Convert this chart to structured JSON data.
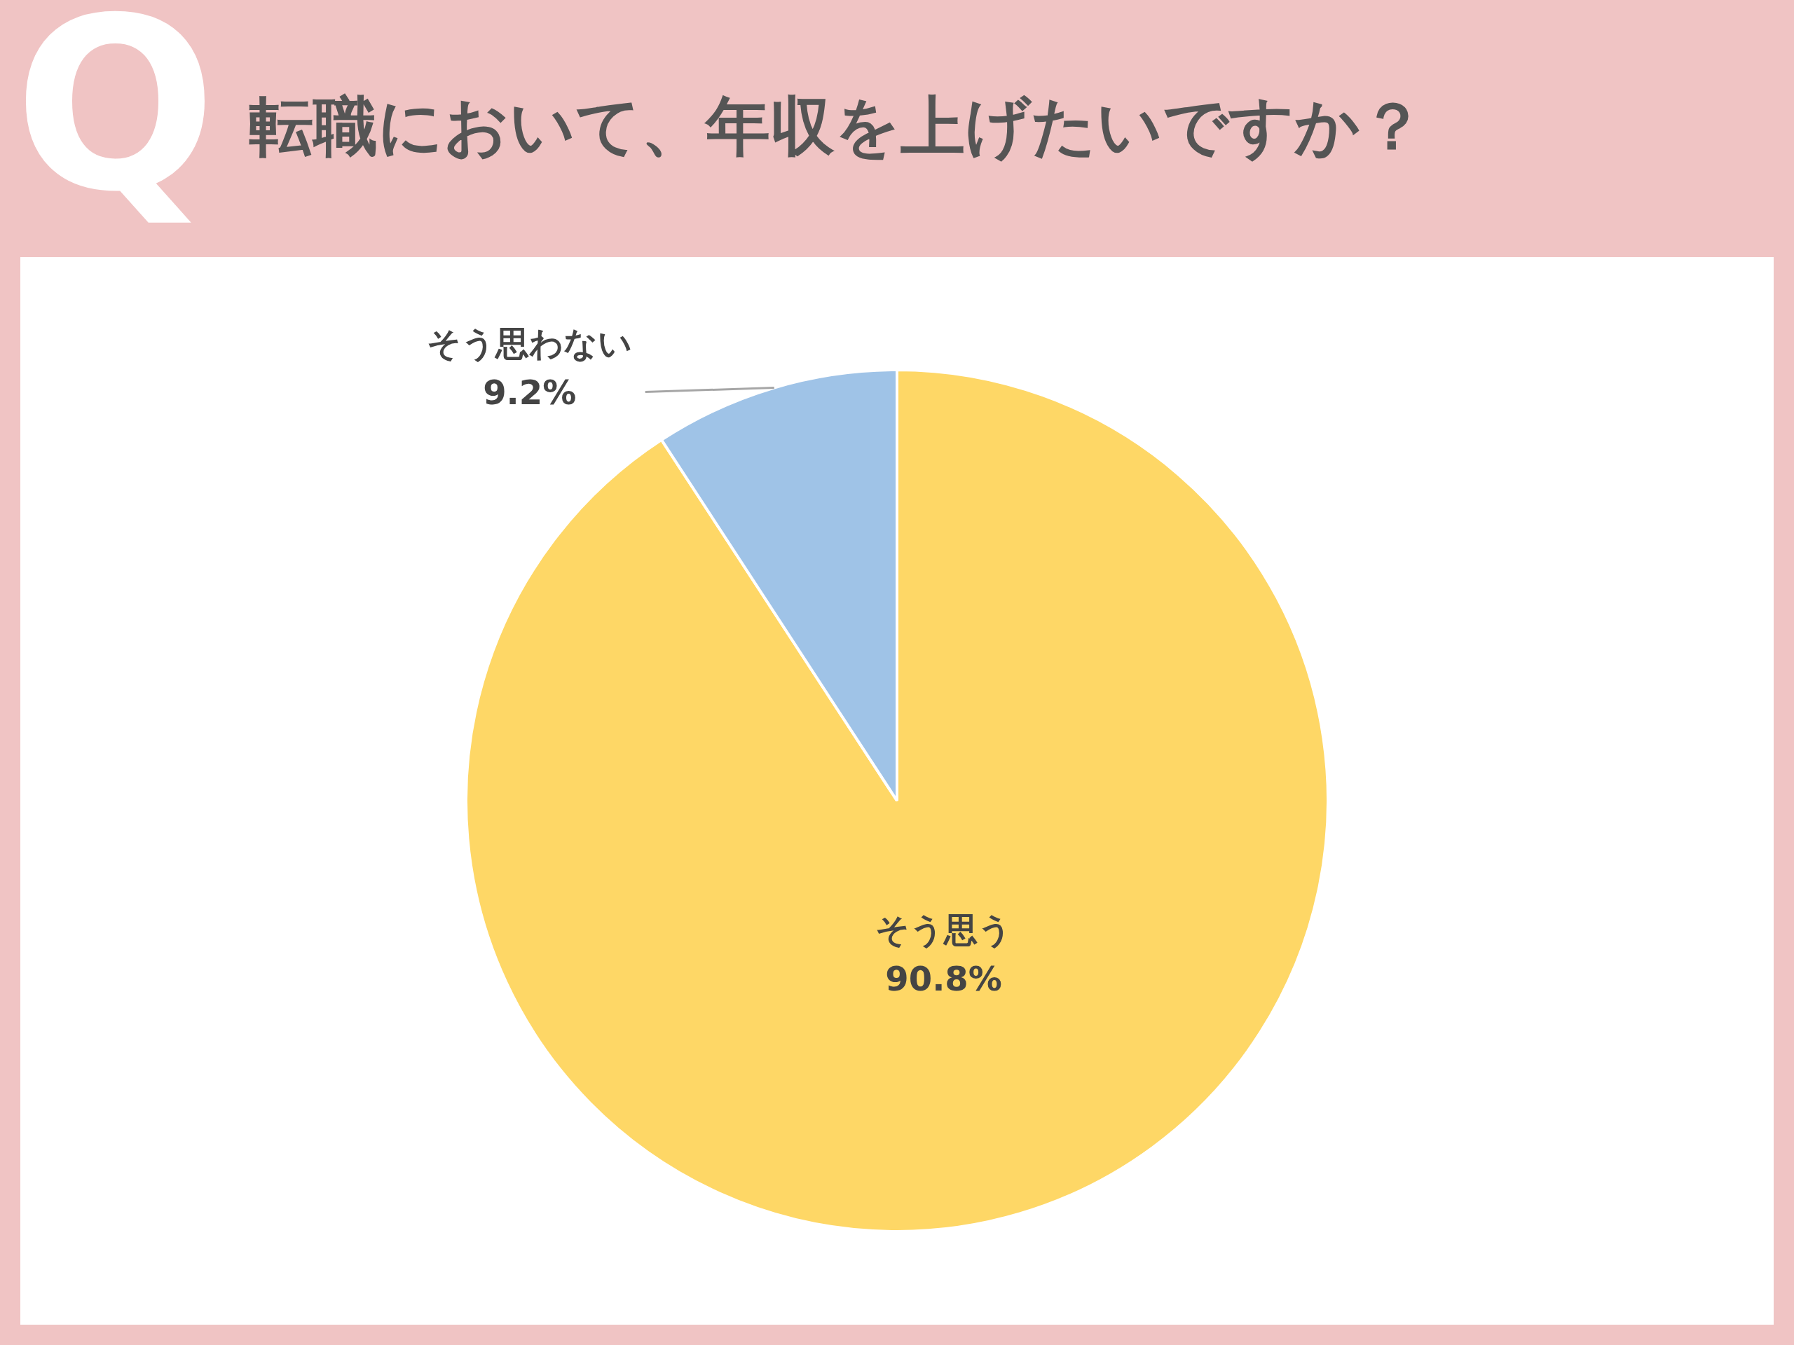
{
  "chart_data": {
    "type": "pie",
    "title": "転職において、年収を上げたいですか？",
    "annotations": [
      "Q"
    ],
    "categories": [
      "そう思う",
      "そう思わない"
    ],
    "values": [
      90.8,
      9.2
    ],
    "colors": [
      "#fed766",
      "#9fc3e7"
    ],
    "value_labels": [
      "90.8%",
      "9.2%"
    ],
    "legend": false
  }
}
